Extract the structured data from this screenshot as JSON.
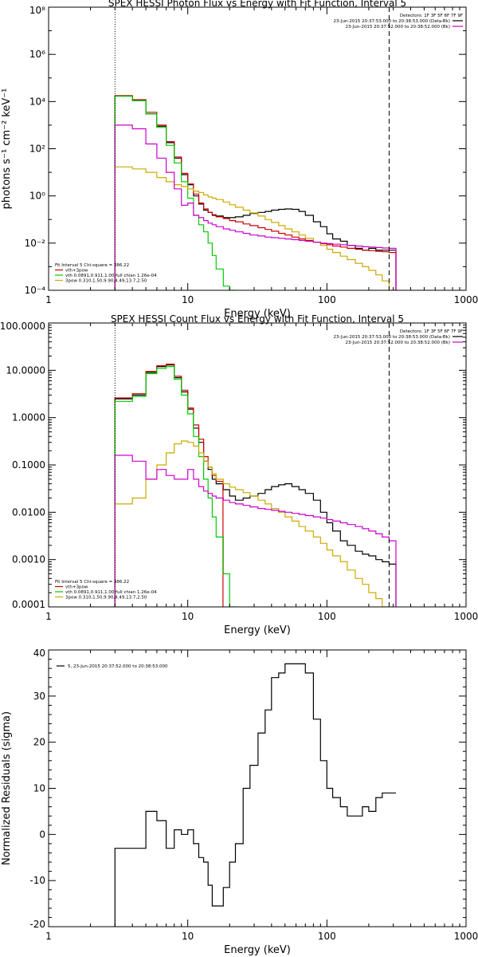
{
  "chart_data": [
    {
      "type": "line",
      "title": "SPEX HESSI Photon Flux vs Energy with Fit Function, Interval 5",
      "xlabel": "Energy (keV)",
      "ylabel": "photons s⁻¹ cm⁻² keV⁻¹",
      "xscale": "log",
      "yscale": "log",
      "xlim": [
        1,
        1000
      ],
      "ylim": [
        0.0001,
        100000000
      ],
      "x_ticks": [
        "1",
        "10",
        "100",
        "1000"
      ],
      "y_ticks": [
        "10⁻⁴",
        "10⁻²",
        "10⁰",
        "10²",
        "10⁴",
        "10⁶",
        "10⁸"
      ],
      "vlines": [
        {
          "x": 3,
          "style": "dotted"
        },
        {
          "x": 280,
          "style": "dashed"
        }
      ],
      "legend_tr": {
        "placement": "top-right",
        "header": "Detectors: 1F 3F 5F 6F 7F 9F",
        "items": [
          {
            "text": "23-Jun-2015 20:37:53.000 to 20:38:53.000 (Data-Bk)",
            "color": "#000000"
          },
          {
            "text": "23-Jun-2015 20:37:52.000 to 20:38:52.000 (Bk)",
            "color": "#cc00cc"
          }
        ]
      },
      "legend_bl": {
        "placement": "bottom-left",
        "header": "Fit Interval 5   Chi-square = 386.22",
        "items": [
          {
            "text": "vth+3pow",
            "color": "#cc0000"
          },
          {
            "text": "vth 0.0891,0.911,1.00  full chian 1.26e-04",
            "color": "#00cc00"
          },
          {
            "text": "3pow 0.310,1.50,9.90,4.49,13.7,2.50",
            "color": "#ccaa00"
          }
        ]
      },
      "series": [
        {
          "name": "data",
          "color": "#000000",
          "x": [
            3,
            4,
            5,
            6,
            7,
            8,
            9,
            10,
            11,
            12,
            13,
            14,
            15,
            16,
            18,
            20,
            22,
            25,
            28,
            32,
            36,
            40,
            45,
            50,
            56,
            63,
            70,
            80,
            90,
            100,
            110,
            125,
            140,
            160,
            180,
            200,
            225,
            250,
            280
          ],
          "y": [
            17000,
            11000,
            3000,
            900,
            180,
            40,
            8,
            3,
            1,
            0.45,
            0.25,
            0.2,
            0.15,
            0.14,
            0.12,
            0.12,
            0.13,
            0.15,
            0.18,
            0.2,
            0.22,
            0.25,
            0.27,
            0.28,
            0.27,
            0.22,
            0.15,
            0.08,
            0.05,
            0.025,
            0.015,
            0.012,
            0.008,
            0.006,
            0.005,
            0.006,
            0.005,
            0.005,
            0.005
          ]
        },
        {
          "name": "vth+3pow",
          "color": "#cc0000",
          "x": [
            3,
            4,
            5,
            6,
            7,
            8,
            9,
            10,
            11,
            12,
            13,
            14,
            15,
            16,
            18,
            20,
            22,
            25,
            28,
            32,
            36,
            40,
            45,
            50,
            56,
            63,
            70,
            80,
            90,
            100,
            110,
            125,
            140,
            160,
            180,
            200,
            225,
            250,
            280
          ],
          "y": [
            18000,
            12000,
            3500,
            1000,
            200,
            45,
            9,
            3.2,
            1.2,
            0.5,
            0.28,
            0.2,
            0.16,
            0.13,
            0.11,
            0.09,
            0.08,
            0.065,
            0.055,
            0.045,
            0.038,
            0.032,
            0.026,
            0.022,
            0.018,
            0.015,
            0.013,
            0.011,
            0.0095,
            0.0085,
            0.0075,
            0.0068,
            0.006,
            0.0055,
            0.005,
            0.0048,
            0.0045,
            0.0043,
            0.004
          ]
        },
        {
          "name": "vth",
          "color": "#00cc00",
          "x": [
            3,
            4,
            5,
            6,
            7,
            8,
            9,
            10,
            11,
            12,
            13,
            14,
            15,
            16,
            18,
            20
          ],
          "y": [
            17000,
            11000,
            3000,
            800,
            140,
            25,
            4,
            0.8,
            0.15,
            0.06,
            0.03,
            0.01,
            0.003,
            0.0008,
            0.00015,
            0.0001
          ]
        },
        {
          "name": "3pow",
          "color": "#ccaa00",
          "x": [
            3,
            4,
            5,
            6,
            7,
            8,
            9,
            10,
            11,
            12,
            13,
            14,
            15,
            16,
            18,
            20,
            22,
            25,
            28,
            32,
            36,
            40,
            45,
            50,
            56,
            63,
            70,
            80,
            90,
            100,
            110,
            125,
            140,
            160,
            180,
            200,
            225,
            250,
            280
          ],
          "y": [
            17,
            14,
            10,
            6,
            4,
            3,
            2.5,
            2,
            1.6,
            1.4,
            1.1,
            0.9,
            0.8,
            0.7,
            0.55,
            0.42,
            0.33,
            0.25,
            0.19,
            0.14,
            0.1,
            0.075,
            0.055,
            0.04,
            0.03,
            0.022,
            0.016,
            0.011,
            0.008,
            0.0055,
            0.004,
            0.0028,
            0.002,
            0.0014,
            0.001,
            0.0007,
            0.00045,
            0.00025,
            0.0001
          ]
        },
        {
          "name": "background",
          "color": "#cc00cc",
          "x": [
            3,
            4,
            5,
            6,
            7,
            8,
            9,
            10,
            11,
            12,
            13,
            14,
            15,
            16,
            18,
            20,
            22,
            25,
            28,
            32,
            36,
            40,
            45,
            50,
            56,
            63,
            70,
            80,
            90,
            100,
            110,
            125,
            140,
            160,
            180,
            200,
            225,
            250,
            280
          ],
          "y": [
            1000,
            700,
            160,
            40,
            10,
            2,
            0.4,
            0.5,
            0.15,
            0.12,
            0.09,
            0.07,
            0.06,
            0.05,
            0.04,
            0.035,
            0.03,
            0.026,
            0.022,
            0.02,
            0.018,
            0.017,
            0.016,
            0.015,
            0.014,
            0.013,
            0.012,
            0.011,
            0.01,
            0.0095,
            0.009,
            0.0085,
            0.008,
            0.0075,
            0.007,
            0.0068,
            0.0065,
            0.0062,
            0.006
          ]
        }
      ]
    },
    {
      "type": "line",
      "title": "SPEX HESSI Count Flux vs Energy with Fit Function, Interval 5",
      "xlabel": "Energy (keV)",
      "ylabel": "",
      "xscale": "log",
      "yscale": "log",
      "xlim": [
        1,
        1000
      ],
      "ylim": [
        0.0001,
        100
      ],
      "x_ticks": [
        "1",
        "10",
        "100",
        "1000"
      ],
      "y_ticks": [
        "0.0001",
        "0.0010",
        "0.0100",
        "0.1000",
        "1.0000",
        "10.0000",
        "100.0000"
      ],
      "vlines": [
        {
          "x": 3,
          "style": "dotted"
        },
        {
          "x": 280,
          "style": "dashed"
        }
      ],
      "legend_tr": {
        "placement": "top-right",
        "header": "Detectors: 1F 3F 5F 6F 7F 9F",
        "items": [
          {
            "text": "23-Jun-2015 20:37:53.000 to 20:38:53.000 (Data-Bk)",
            "color": "#000000"
          },
          {
            "text": "23-Jun-2015 20:37:52.000 to 20:38:52.000 (Bk)",
            "color": "#cc00cc"
          }
        ]
      },
      "legend_bl": {
        "placement": "bottom-left",
        "header": "Fit Interval 5   Chi-square = 386.22",
        "items": [
          {
            "text": "vth+3pow",
            "color": "#cc0000"
          },
          {
            "text": "vth 0.0891,0.911,1.00  full chian 1.26e-04",
            "color": "#00cc00"
          },
          {
            "text": "3pow 0.310,1.50,9.90,4.49,13.7,2.50",
            "color": "#ccaa00"
          }
        ]
      },
      "series": [
        {
          "name": "data",
          "color": "#000000",
          "x": [
            3,
            4,
            5,
            6,
            7,
            8,
            9,
            10,
            11,
            12,
            13,
            14,
            15,
            16,
            18,
            20,
            22,
            25,
            28,
            32,
            36,
            40,
            45,
            50,
            56,
            63,
            70,
            80,
            90,
            100,
            110,
            125,
            140,
            160,
            180,
            200,
            225,
            250,
            280
          ],
          "y": [
            2.5,
            3,
            9,
            12,
            13,
            7,
            3.5,
            1.5,
            0.6,
            0.3,
            0.12,
            0.08,
            0.05,
            0.04,
            0.03,
            0.022,
            0.018,
            0.02,
            0.022,
            0.025,
            0.03,
            0.035,
            0.038,
            0.04,
            0.035,
            0.03,
            0.025,
            0.018,
            0.01,
            0.006,
            0.004,
            0.0025,
            0.002,
            0.0015,
            0.0013,
            0.0012,
            0.001,
            0.0009,
            0.0008
          ]
        },
        {
          "name": "vth+3pow",
          "color": "#cc0000",
          "x": [
            3,
            4,
            5,
            6,
            7,
            8,
            9,
            10,
            11,
            12,
            13,
            14,
            15,
            16
          ],
          "y": [
            2.6,
            3.2,
            9.5,
            12.5,
            13.5,
            7.5,
            3.8,
            1.6,
            0.7,
            0.35,
            0.15,
            0.09,
            0.06,
            0.045
          ]
        },
        {
          "name": "vth",
          "color": "#00cc00",
          "x": [
            3,
            4,
            5,
            6,
            7,
            8,
            9,
            10,
            11,
            12,
            13,
            14,
            15,
            16,
            18,
            20
          ],
          "y": [
            2.2,
            2.8,
            8.5,
            11,
            12,
            6.5,
            3,
            1.2,
            0.4,
            0.15,
            0.05,
            0.02,
            0.008,
            0.003,
            0.0005,
            0.0001
          ]
        },
        {
          "name": "3pow",
          "color": "#ccaa00",
          "x": [
            3,
            4,
            5,
            6,
            7,
            8,
            9,
            10,
            11,
            12,
            13,
            14,
            15,
            16,
            18,
            20,
            22,
            25,
            28,
            32,
            36,
            40,
            45,
            50,
            56,
            63,
            70,
            80,
            90,
            100,
            110,
            125,
            140,
            160,
            180,
            200,
            225,
            250,
            280
          ],
          "y": [
            0.015,
            0.02,
            0.05,
            0.1,
            0.18,
            0.28,
            0.32,
            0.3,
            0.25,
            0.18,
            0.12,
            0.09,
            0.065,
            0.05,
            0.04,
            0.034,
            0.03,
            0.026,
            0.022,
            0.018,
            0.015,
            0.012,
            0.01,
            0.008,
            0.0065,
            0.005,
            0.004,
            0.003,
            0.0022,
            0.0016,
            0.0012,
            0.0009,
            0.0006,
            0.0004,
            0.0003,
            0.0002,
            0.00015,
            0.0001,
            0.0001
          ]
        },
        {
          "name": "background",
          "color": "#cc00cc",
          "x": [
            3,
            4,
            5,
            6,
            7,
            8,
            9,
            10,
            11,
            12,
            13,
            14,
            15,
            16,
            18,
            20,
            22,
            25,
            28,
            32,
            36,
            40,
            45,
            50,
            56,
            63,
            70,
            80,
            90,
            100,
            110,
            125,
            140,
            160,
            180,
            200,
            225,
            250,
            280
          ],
          "y": [
            0.16,
            0.12,
            0.05,
            0.08,
            0.06,
            0.05,
            0.05,
            0.08,
            0.05,
            0.035,
            0.028,
            0.025,
            0.022,
            0.02,
            0.018,
            0.016,
            0.015,
            0.014,
            0.013,
            0.012,
            0.0115,
            0.011,
            0.0105,
            0.01,
            0.0095,
            0.009,
            0.0085,
            0.008,
            0.0075,
            0.007,
            0.0065,
            0.006,
            0.0055,
            0.005,
            0.0045,
            0.004,
            0.0035,
            0.003,
            0.0025
          ]
        }
      ]
    },
    {
      "type": "line",
      "title": "",
      "xlabel": "Energy (keV)",
      "ylabel": "Normalized Residuals (sigma)",
      "xscale": "log",
      "yscale": "linear",
      "xlim": [
        1,
        1000
      ],
      "ylim": [
        -20,
        40
      ],
      "x_ticks": [
        "1",
        "10",
        "100",
        "1000"
      ],
      "y_ticks": [
        "-20",
        "-10",
        "0",
        "10",
        "20",
        "30",
        "40"
      ],
      "legend_tl": {
        "placement": "top-left",
        "items": [
          {
            "text": "5, 23-Jun-2015 20:37:52.000 to 20:38:53.000",
            "color": "#000000"
          }
        ]
      },
      "series": [
        {
          "name": "residuals",
          "color": "#000000",
          "x": [
            3,
            4,
            5,
            6,
            7,
            8,
            9,
            10,
            11,
            12,
            13,
            14,
            15,
            16,
            18,
            20,
            22,
            25,
            28,
            32,
            36,
            40,
            45,
            50,
            56,
            63,
            70,
            80,
            90,
            100,
            110,
            125,
            140,
            160,
            180,
            200,
            225,
            250,
            280
          ],
          "y": [
            -3,
            -3,
            5,
            3,
            -3,
            1,
            0,
            1,
            -2,
            -5,
            -6,
            -11,
            -15.5,
            -15.5,
            -11.5,
            -6,
            -2,
            10,
            15,
            22,
            27,
            34,
            35,
            37,
            37,
            37,
            35,
            25,
            16,
            10,
            8,
            6,
            4,
            4,
            6,
            5,
            8,
            9,
            9
          ]
        }
      ]
    }
  ]
}
